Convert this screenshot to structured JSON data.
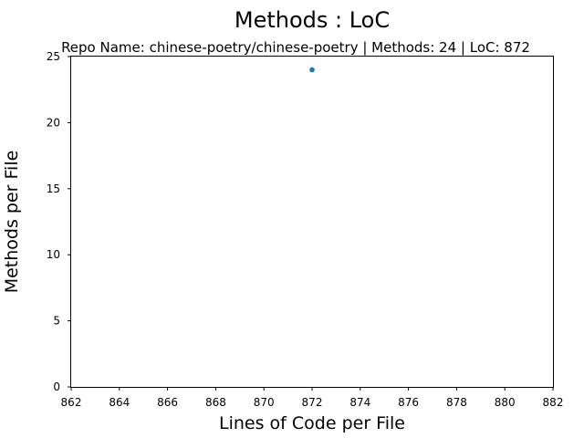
{
  "chart_data": {
    "type": "scatter",
    "title": "Methods : LoC",
    "subtitle": "Repo Name: chinese-poetry/chinese-poetry | Methods: 24 | LoC: 872",
    "xlabel": "Lines of Code per File",
    "ylabel": "Methods per File",
    "xlim": [
      862,
      882
    ],
    "ylim": [
      0,
      25
    ],
    "xticks": [
      "862",
      "864",
      "866",
      "868",
      "870",
      "872",
      "874",
      "876",
      "878",
      "880",
      "882"
    ],
    "yticks": [
      "0",
      "5",
      "10",
      "15",
      "20",
      "25"
    ],
    "grid": false,
    "points": [
      {
        "x": 872,
        "y": 24
      }
    ],
    "point_color": "#1f77b4"
  }
}
